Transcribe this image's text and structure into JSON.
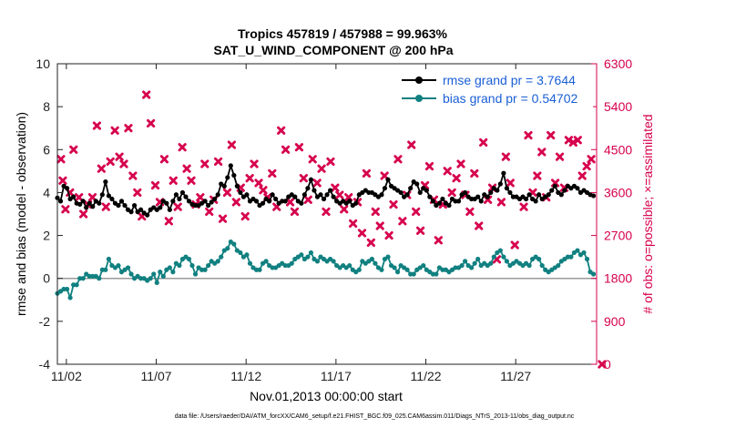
{
  "chart_data": {
    "type": "line",
    "title_line1": "Tropics 457819 / 457988 = 99.963%",
    "title_line2": "SAT_U_WIND_COMPONENT @ 200 hPa",
    "xlabel": "Nov.01,2013 00:00:00 start",
    "ylabel_left": "rmse and bias (model - observation)",
    "ylabel_right": "# of obs: o=possible; ×=assimilated",
    "footer": "data file: /Users/raeder/DAI/ATM_forcXX/CAM6_setup/f.e21.FHIST_BGC.f09_025.CAM6assim.011/Diags_NTrS_2013-11/obs_diag_output.nc",
    "xlim": [
      0.5,
      30.5
    ],
    "ylim_left": [
      -4,
      10
    ],
    "ylim_right": [
      0,
      6300
    ],
    "x_ticks": [
      1,
      6,
      11,
      16,
      21,
      26
    ],
    "x_ticklabels": [
      "11/02",
      "11/07",
      "11/12",
      "11/17",
      "11/22",
      "11/27"
    ],
    "y_ticks_left": [
      "10",
      "8",
      "6",
      "4",
      "2",
      "0",
      "-2",
      "-4"
    ],
    "y_ticks_right": [
      "6300",
      "5400",
      "4500",
      "3600",
      "2700",
      "1800",
      "900",
      "0"
    ],
    "legend": [
      {
        "name": "rmse grand pr = 3.7644",
        "color": "#000000"
      },
      {
        "name": "bias grand pr = 0.54702",
        "color": "#118080"
      }
    ],
    "series": [
      {
        "name": "rmse",
        "color": "#000000",
        "values": [
          3.75,
          3.6,
          4.3,
          4.2,
          3.7,
          3.8,
          3.5,
          3.45,
          3.6,
          3.3,
          3.5,
          3.35,
          3.6,
          3.5,
          3.9,
          4.5,
          3.85,
          3.7,
          3.5,
          3.4,
          3.6,
          3.4,
          3.2,
          3.1,
          3.4,
          3.1,
          3.2,
          3.05,
          2.95,
          3.2,
          3.3,
          3.2,
          3.3,
          3.6,
          3.5,
          3.2,
          3.6,
          3.9,
          3.7,
          4.0,
          3.8,
          3.6,
          3.45,
          3.4,
          3.4,
          3.5,
          3.6,
          3.4,
          3.55,
          3.7,
          3.9,
          4.4,
          4.3,
          4.7,
          5.25,
          4.8,
          4.3,
          4.0,
          3.8,
          3.9,
          3.6,
          3.7,
          3.6,
          3.4,
          3.5,
          3.7,
          3.6,
          3.9,
          3.7,
          3.5,
          3.6,
          3.6,
          3.8,
          3.9,
          3.8,
          3.6,
          3.5,
          3.9,
          4.2,
          4.6,
          4.1,
          3.8,
          3.9,
          3.7,
          3.9,
          4.1,
          3.8,
          3.6,
          3.5,
          3.6,
          3.5,
          3.6,
          3.4,
          3.5,
          3.9,
          4.0,
          4.1,
          4.0,
          4.0,
          3.9,
          3.8,
          3.9,
          4.2,
          4.6,
          4.3,
          4.2,
          4.1,
          4.0,
          3.8,
          3.9,
          4.2,
          4.5,
          4.4,
          4.0,
          4.2,
          4.1,
          3.8,
          3.6,
          3.4,
          3.5,
          3.7,
          3.5,
          3.4,
          3.7,
          3.6,
          3.6,
          3.9,
          4.0,
          3.8,
          3.7,
          3.7,
          3.8,
          3.6,
          3.9,
          3.8,
          4.0,
          4.2,
          4.1,
          4.4,
          4.9,
          4.2,
          4.0,
          3.8,
          3.8,
          3.7,
          3.8,
          3.7,
          3.9,
          3.7,
          3.6,
          3.9,
          3.7,
          3.8,
          3.9,
          4.1,
          4.3,
          4.0,
          3.9,
          4.1,
          4.3,
          4.2,
          4.3,
          4.2,
          4.0,
          4.1,
          4.0,
          3.9,
          3.85
        ],
        "x_start": 0.5,
        "x_step": 0.1786
      },
      {
        "name": "bias",
        "color": "#118080",
        "values": [
          -0.7,
          -0.6,
          -0.5,
          -0.5,
          -0.9,
          -0.3,
          -0.3,
          0.0,
          0.0,
          0.2,
          0.1,
          0.1,
          0.1,
          0.0,
          0.4,
          0.4,
          0.9,
          0.6,
          0.5,
          0.6,
          0.3,
          0.4,
          0.5,
          0.2,
          0.0,
          0.1,
          0.0,
          0.0,
          -0.1,
          0.0,
          0.2,
          -0.2,
          0.3,
          0.1,
          0.4,
          0.5,
          0.3,
          0.7,
          0.6,
          0.9,
          1.0,
          0.9,
          0.6,
          0.2,
          0.5,
          0.4,
          0.4,
          0.6,
          0.8,
          0.7,
          0.8,
          1.0,
          1.3,
          1.4,
          1.7,
          1.6,
          1.3,
          1.2,
          1.0,
          1.1,
          0.7,
          0.5,
          0.4,
          0.4,
          0.7,
          0.8,
          0.6,
          0.5,
          0.5,
          0.6,
          0.7,
          0.6,
          0.6,
          0.7,
          0.9,
          1.0,
          1.1,
          0.9,
          1.0,
          1.2,
          0.9,
          0.8,
          1.0,
          0.9,
          0.8,
          0.9,
          0.8,
          0.6,
          0.5,
          0.6,
          0.5,
          0.6,
          0.4,
          0.3,
          0.4,
          0.8,
          0.7,
          0.8,
          0.9,
          0.7,
          0.5,
          0.4,
          0.9,
          1.0,
          0.6,
          0.5,
          0.3,
          0.6,
          0.5,
          0.4,
          0.2,
          0.2,
          0.4,
          0.5,
          0.6,
          0.4,
          0.3,
          0.2,
          0.2,
          0.5,
          0.4,
          0.4,
          0.3,
          0.4,
          0.5,
          0.5,
          0.6,
          0.8,
          0.6,
          0.5,
          0.7,
          0.9,
          0.6,
          0.7,
          0.6,
          0.7,
          1.0,
          1.2,
          1.3,
          1.0,
          0.8,
          0.6,
          0.7,
          0.8,
          0.7,
          0.6,
          0.7,
          0.6,
          0.9,
          1.0,
          0.9,
          0.6,
          0.4,
          0.3,
          0.4,
          0.5,
          0.6,
          0.8,
          0.9,
          1.0,
          1.0,
          1.2,
          1.3,
          1.1,
          1.2,
          0.9,
          0.3,
          0.2
        ],
        "x_start": 0.5,
        "x_step": 0.1786
      }
    ],
    "obs_assimilated": {
      "color": "#d6004d",
      "points": [
        [
          0.2,
          4300
        ],
        [
          0.3,
          3850
        ],
        [
          0.45,
          3250
        ],
        [
          0.7,
          3600
        ],
        [
          0.9,
          4500
        ],
        [
          1.2,
          3500
        ],
        [
          1.45,
          3150
        ],
        [
          1.7,
          3350
        ],
        [
          1.95,
          3500
        ],
        [
          2.2,
          5000
        ],
        [
          2.45,
          4100
        ],
        [
          2.7,
          3300
        ],
        [
          2.95,
          4250
        ],
        [
          3.2,
          4900
        ],
        [
          3.45,
          4350
        ],
        [
          3.7,
          4200
        ],
        [
          3.95,
          4950
        ],
        [
          4.2,
          3950
        ],
        [
          4.45,
          3600
        ],
        [
          4.7,
          3100
        ],
        [
          4.95,
          5650
        ],
        [
          5.2,
          5050
        ],
        [
          5.45,
          3750
        ],
        [
          5.7,
          3400
        ],
        [
          5.95,
          4300
        ],
        [
          6.2,
          3000
        ],
        [
          6.45,
          3850
        ],
        [
          6.7,
          3300
        ],
        [
          6.95,
          4550
        ],
        [
          7.2,
          4100
        ],
        [
          7.45,
          3850
        ],
        [
          7.7,
          3350
        ],
        [
          7.95,
          3500
        ],
        [
          8.2,
          4200
        ],
        [
          8.45,
          3200
        ],
        [
          8.7,
          3450
        ],
        [
          8.95,
          4250
        ],
        [
          9.2,
          3050
        ],
        [
          9.45,
          3600
        ],
        [
          9.7,
          4600
        ],
        [
          9.95,
          3400
        ],
        [
          10.2,
          3700
        ],
        [
          10.45,
          3100
        ],
        [
          10.7,
          3900
        ],
        [
          10.95,
          4200
        ],
        [
          11.2,
          3800
        ],
        [
          11.45,
          3650
        ],
        [
          11.7,
          3500
        ],
        [
          11.95,
          4000
        ],
        [
          12.2,
          3300
        ],
        [
          12.45,
          4900
        ],
        [
          12.7,
          4500
        ],
        [
          12.95,
          3400
        ],
        [
          13.2,
          3200
        ],
        [
          13.45,
          4550
        ],
        [
          13.7,
          3900
        ],
        [
          13.95,
          3450
        ],
        [
          14.2,
          4300
        ],
        [
          14.45,
          3800
        ],
        [
          14.7,
          4100
        ],
        [
          14.95,
          3200
        ],
        [
          15.2,
          4250
        ],
        [
          15.45,
          3700
        ],
        [
          15.7,
          3550
        ],
        [
          15.95,
          3250
        ],
        [
          16.2,
          3500
        ],
        [
          16.45,
          2950
        ],
        [
          16.7,
          3400
        ],
        [
          16.95,
          2750
        ],
        [
          17.2,
          4000
        ],
        [
          17.45,
          2550
        ],
        [
          17.7,
          3200
        ],
        [
          17.95,
          2900
        ],
        [
          18.2,
          3950
        ],
        [
          18.45,
          2700
        ],
        [
          18.7,
          3350
        ],
        [
          18.95,
          4300
        ],
        [
          19.2,
          3000
        ],
        [
          19.45,
          3550
        ],
        [
          19.7,
          4600
        ],
        [
          19.95,
          3200
        ],
        [
          20.2,
          2800
        ],
        [
          20.45,
          3750
        ],
        [
          20.7,
          4150
        ],
        [
          20.95,
          3450
        ],
        [
          21.2,
          2600
        ],
        [
          21.45,
          3350
        ],
        [
          21.7,
          4050
        ],
        [
          21.95,
          3600
        ],
        [
          22.2,
          3900
        ],
        [
          22.45,
          4200
        ],
        [
          22.7,
          3550
        ],
        [
          22.95,
          3200
        ],
        [
          23.2,
          4000
        ],
        [
          23.45,
          2900
        ],
        [
          23.7,
          4650
        ],
        [
          23.95,
          3450
        ],
        [
          24.2,
          3700
        ],
        [
          24.45,
          2200
        ],
        [
          24.7,
          3400
        ],
        [
          24.95,
          4350
        ],
        [
          25.2,
          3800
        ],
        [
          25.45,
          2500
        ],
        [
          25.7,
          5700
        ],
        [
          25.95,
          3300
        ],
        [
          26.2,
          4800
        ],
        [
          26.45,
          3600
        ],
        [
          26.7,
          3950
        ],
        [
          26.95,
          4450
        ],
        [
          27.2,
          3500
        ],
        [
          27.45,
          4800
        ],
        [
          27.7,
          3800
        ],
        [
          27.95,
          4350
        ],
        [
          28.2,
          3700
        ],
        [
          28.45,
          4700
        ],
        [
          28.7,
          4650
        ],
        [
          28.95,
          4700
        ],
        [
          29.2,
          3950
        ],
        [
          29.45,
          4150
        ],
        [
          29.7,
          4300
        ],
        [
          30.3,
          0
        ]
      ]
    }
  }
}
